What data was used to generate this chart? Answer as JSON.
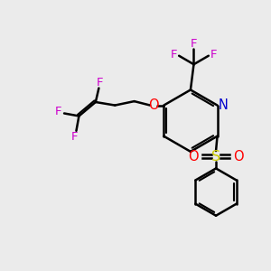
{
  "bg_color": "#ebebeb",
  "bond_color": "#000000",
  "N_color": "#0000cc",
  "O_color": "#ff0000",
  "S_color": "#cccc00",
  "F_color": "#cc00cc",
  "line_width": 1.8,
  "figsize": [
    3.0,
    3.0
  ],
  "dpi": 100,
  "xlim": [
    0,
    10
  ],
  "ylim": [
    0,
    10
  ]
}
